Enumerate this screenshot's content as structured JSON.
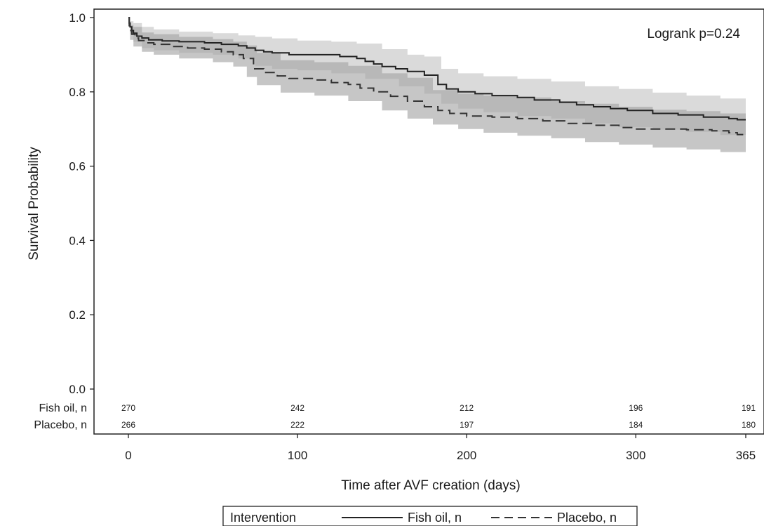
{
  "chart_data": {
    "type": "line",
    "xlabel": "Time after AVF creation (days)",
    "ylabel": "Survival Probability",
    "xlim": [
      0,
      365
    ],
    "ylim": [
      0,
      1
    ],
    "x_ticks": [
      0,
      100,
      200,
      300,
      365
    ],
    "x_tick_labels": [
      "0",
      "100",
      "200",
      "300",
      "365"
    ],
    "y_ticks": [
      0,
      0.2,
      0.4,
      0.6,
      0.8,
      1.0
    ],
    "y_tick_labels": [
      "0.0",
      "0.2",
      "0.4",
      "0.6",
      "0.8",
      "1.0"
    ],
    "grid": false,
    "annotation": "Logrank p=0.24",
    "legend": {
      "title": "Intervention",
      "placement": "bottom",
      "entries": [
        "Fish oil, n",
        "Placebo, n"
      ]
    },
    "series": [
      {
        "name": "Fish oil, n",
        "style": "solid",
        "color": "#222222",
        "band_color": "#c4c4c4",
        "steps": [
          [
            0,
            1.0
          ],
          [
            0.5,
            0.985
          ],
          [
            1,
            0.975
          ],
          [
            2,
            0.965
          ],
          [
            3,
            0.958
          ],
          [
            5,
            0.95
          ],
          [
            8,
            0.945
          ],
          [
            12,
            0.94
          ],
          [
            20,
            0.937
          ],
          [
            30,
            0.935
          ],
          [
            45,
            0.932
          ],
          [
            55,
            0.928
          ],
          [
            65,
            0.924
          ],
          [
            70,
            0.918
          ],
          [
            75,
            0.912
          ],
          [
            80,
            0.908
          ],
          [
            85,
            0.905
          ],
          [
            95,
            0.9
          ],
          [
            110,
            0.9
          ],
          [
            125,
            0.895
          ],
          [
            135,
            0.89
          ],
          [
            140,
            0.882
          ],
          [
            145,
            0.875
          ],
          [
            150,
            0.868
          ],
          [
            158,
            0.862
          ],
          [
            165,
            0.855
          ],
          [
            175,
            0.845
          ],
          [
            183,
            0.82
          ],
          [
            188,
            0.808
          ],
          [
            195,
            0.8
          ],
          [
            205,
            0.795
          ],
          [
            215,
            0.79
          ],
          [
            230,
            0.785
          ],
          [
            240,
            0.778
          ],
          [
            255,
            0.772
          ],
          [
            265,
            0.765
          ],
          [
            275,
            0.76
          ],
          [
            285,
            0.755
          ],
          [
            295,
            0.75
          ],
          [
            310,
            0.742
          ],
          [
            325,
            0.738
          ],
          [
            340,
            0.732
          ],
          [
            355,
            0.728
          ],
          [
            360,
            0.725
          ],
          [
            365,
            0.725
          ]
        ],
        "lower": [
          [
            0,
            1.0
          ],
          [
            1,
            0.955
          ],
          [
            3,
            0.935
          ],
          [
            8,
            0.918
          ],
          [
            15,
            0.912
          ],
          [
            30,
            0.905
          ],
          [
            50,
            0.9
          ],
          [
            65,
            0.89
          ],
          [
            75,
            0.87
          ],
          [
            85,
            0.862
          ],
          [
            100,
            0.858
          ],
          [
            120,
            0.85
          ],
          [
            140,
            0.835
          ],
          [
            160,
            0.815
          ],
          [
            175,
            0.795
          ],
          [
            185,
            0.768
          ],
          [
            195,
            0.755
          ],
          [
            210,
            0.745
          ],
          [
            230,
            0.735
          ],
          [
            250,
            0.728
          ],
          [
            270,
            0.715
          ],
          [
            290,
            0.705
          ],
          [
            310,
            0.698
          ],
          [
            330,
            0.692
          ],
          [
            350,
            0.684
          ],
          [
            365,
            0.675
          ]
        ],
        "upper": [
          [
            0,
            1.0
          ],
          [
            1,
            0.99
          ],
          [
            3,
            0.985
          ],
          [
            8,
            0.975
          ],
          [
            15,
            0.968
          ],
          [
            30,
            0.962
          ],
          [
            50,
            0.958
          ],
          [
            65,
            0.952
          ],
          [
            75,
            0.948
          ],
          [
            85,
            0.944
          ],
          [
            100,
            0.938
          ],
          [
            120,
            0.935
          ],
          [
            135,
            0.93
          ],
          [
            150,
            0.915
          ],
          [
            165,
            0.9
          ],
          [
            175,
            0.895
          ],
          [
            185,
            0.862
          ],
          [
            195,
            0.85
          ],
          [
            210,
            0.842
          ],
          [
            230,
            0.835
          ],
          [
            250,
            0.828
          ],
          [
            270,
            0.815
          ],
          [
            290,
            0.808
          ],
          [
            310,
            0.798
          ],
          [
            330,
            0.79
          ],
          [
            350,
            0.782
          ],
          [
            365,
            0.772
          ]
        ]
      },
      {
        "name": "Placebo, n",
        "style": "dashed",
        "color": "#333333",
        "band_color": "#a3a3a3",
        "steps": [
          [
            0,
            1.0
          ],
          [
            0.5,
            0.978
          ],
          [
            1,
            0.965
          ],
          [
            2,
            0.955
          ],
          [
            4,
            0.945
          ],
          [
            6,
            0.938
          ],
          [
            10,
            0.932
          ],
          [
            15,
            0.928
          ],
          [
            25,
            0.922
          ],
          [
            35,
            0.918
          ],
          [
            45,
            0.915
          ],
          [
            55,
            0.908
          ],
          [
            62,
            0.9
          ],
          [
            68,
            0.89
          ],
          [
            74,
            0.862
          ],
          [
            80,
            0.852
          ],
          [
            88,
            0.843
          ],
          [
            95,
            0.836
          ],
          [
            110,
            0.832
          ],
          [
            120,
            0.825
          ],
          [
            130,
            0.82
          ],
          [
            137,
            0.81
          ],
          [
            145,
            0.8
          ],
          [
            155,
            0.788
          ],
          [
            165,
            0.775
          ],
          [
            175,
            0.76
          ],
          [
            183,
            0.75
          ],
          [
            190,
            0.742
          ],
          [
            200,
            0.735
          ],
          [
            215,
            0.732
          ],
          [
            230,
            0.728
          ],
          [
            245,
            0.722
          ],
          [
            260,
            0.715
          ],
          [
            275,
            0.71
          ],
          [
            290,
            0.704
          ],
          [
            300,
            0.7
          ],
          [
            315,
            0.7
          ],
          [
            330,
            0.698
          ],
          [
            345,
            0.695
          ],
          [
            355,
            0.69
          ],
          [
            360,
            0.685
          ],
          [
            365,
            0.685
          ]
        ],
        "lower": [
          [
            0,
            1.0
          ],
          [
            1,
            0.94
          ],
          [
            3,
            0.922
          ],
          [
            8,
            0.908
          ],
          [
            15,
            0.9
          ],
          [
            30,
            0.89
          ],
          [
            50,
            0.88
          ],
          [
            62,
            0.868
          ],
          [
            70,
            0.84
          ],
          [
            76,
            0.818
          ],
          [
            90,
            0.798
          ],
          [
            110,
            0.79
          ],
          [
            130,
            0.775
          ],
          [
            150,
            0.75
          ],
          [
            165,
            0.728
          ],
          [
            180,
            0.712
          ],
          [
            195,
            0.7
          ],
          [
            210,
            0.69
          ],
          [
            230,
            0.682
          ],
          [
            250,
            0.675
          ],
          [
            270,
            0.665
          ],
          [
            290,
            0.658
          ],
          [
            310,
            0.65
          ],
          [
            330,
            0.645
          ],
          [
            350,
            0.638
          ],
          [
            365,
            0.63
          ]
        ],
        "upper": [
          [
            0,
            1.0
          ],
          [
            1,
            0.98
          ],
          [
            3,
            0.975
          ],
          [
            8,
            0.96
          ],
          [
            15,
            0.955
          ],
          [
            30,
            0.948
          ],
          [
            50,
            0.942
          ],
          [
            62,
            0.935
          ],
          [
            70,
            0.925
          ],
          [
            76,
            0.905
          ],
          [
            90,
            0.885
          ],
          [
            110,
            0.88
          ],
          [
            130,
            0.87
          ],
          [
            150,
            0.85
          ],
          [
            165,
            0.838
          ],
          [
            180,
            0.805
          ],
          [
            195,
            0.795
          ],
          [
            210,
            0.79
          ],
          [
            230,
            0.785
          ],
          [
            250,
            0.775
          ],
          [
            270,
            0.768
          ],
          [
            290,
            0.76
          ],
          [
            310,
            0.752
          ],
          [
            330,
            0.748
          ],
          [
            350,
            0.742
          ],
          [
            365,
            0.738
          ]
        ]
      }
    ],
    "risk_table": {
      "times": [
        0,
        100,
        200,
        300,
        365
      ],
      "rows": [
        {
          "label": "Fish oil, n",
          "values": [
            "270",
            "242",
            "212",
            "196",
            "191"
          ]
        },
        {
          "label": "Placebo, n",
          "values": [
            "266",
            "222",
            "197",
            "184",
            "180"
          ]
        }
      ]
    }
  }
}
